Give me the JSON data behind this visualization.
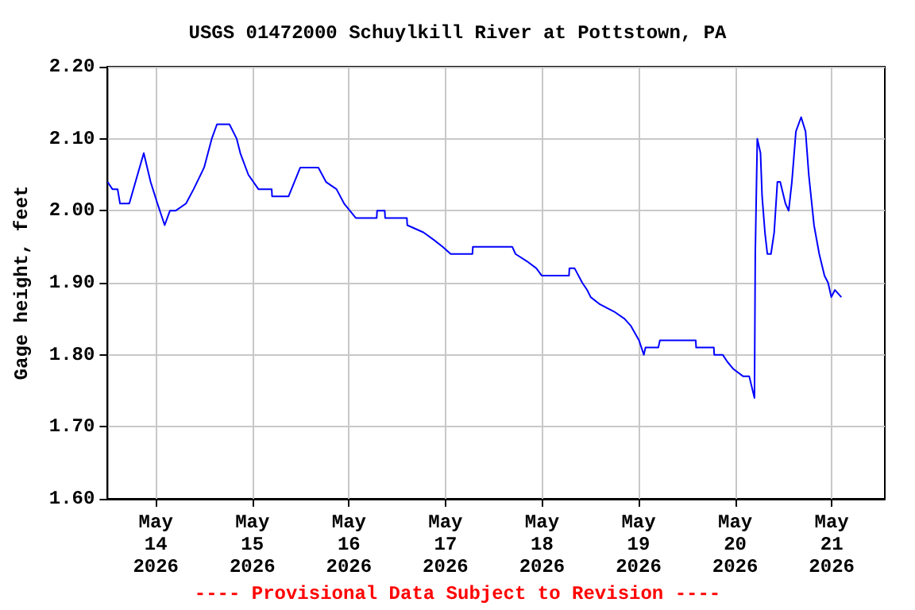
{
  "chart_data": {
    "type": "line",
    "title": "USGS 01472000 Schuylkill River at Pottstown, PA",
    "ylabel": "Gage height, feet",
    "annotations": [
      "---- Provisional Data Subject to Revision ----"
    ],
    "series": [
      {
        "color": "#0000ff",
        "x": [
          "2026-05-13T12:00",
          "2026-05-13T13:12",
          "2026-05-13T14:30",
          "2026-05-13T15:06",
          "2026-05-13T17:24",
          "2026-05-13T21:00",
          "2026-05-13T22:42",
          "2026-05-14T00:24",
          "2026-05-14T02:12",
          "2026-05-14T03:30",
          "2026-05-14T04:54",
          "2026-05-14T07:30",
          "2026-05-14T09:24",
          "2026-05-14T12:00",
          "2026-05-14T13:54",
          "2026-05-14T15:12",
          "2026-05-14T18:18",
          "2026-05-14T20:06",
          "2026-05-14T21:00",
          "2026-05-14T23:00",
          "2026-05-15T01:30",
          "2026-05-15T04:48",
          "2026-05-15T04:54",
          "2026-05-15T09:00",
          "2026-05-15T11:54",
          "2026-05-15T16:24",
          "2026-05-15T18:18",
          "2026-05-15T20:54",
          "2026-05-15T22:48",
          "2026-05-16T01:42",
          "2026-05-16T06:54",
          "2026-05-16T07:00",
          "2026-05-16T08:54",
          "2026-05-16T09:00",
          "2026-05-16T14:24",
          "2026-05-16T14:30",
          "2026-05-16T18:30",
          "2026-05-16T21:00",
          "2026-05-16T23:18",
          "2026-05-17T01:18",
          "2026-05-17T06:42",
          "2026-05-17T06:48",
          "2026-05-17T16:36",
          "2026-05-17T17:24",
          "2026-05-17T20:12",
          "2026-05-17T22:36",
          "2026-05-17T23:54",
          "2026-05-18T06:42",
          "2026-05-18T06:48",
          "2026-05-18T08:06",
          "2026-05-18T10:00",
          "2026-05-18T11:12",
          "2026-05-18T12:06",
          "2026-05-18T14:24",
          "2026-05-18T17:54",
          "2026-05-18T20:30",
          "2026-05-18T22:06",
          "2026-05-19T00:06",
          "2026-05-19T01:18",
          "2026-05-19T01:42",
          "2026-05-19T04:54",
          "2026-05-19T05:18",
          "2026-05-19T14:12",
          "2026-05-19T14:18",
          "2026-05-19T18:42",
          "2026-05-19T18:48",
          "2026-05-19T20:54",
          "2026-05-19T22:06",
          "2026-05-19T23:36",
          "2026-05-20T02:00",
          "2026-05-20T03:30",
          "2026-05-20T04:48",
          "2026-05-20T05:00",
          "2026-05-20T05:30",
          "2026-05-20T06:18",
          "2026-05-20T06:42",
          "2026-05-20T07:24",
          "2026-05-20T08:00",
          "2026-05-20T08:54",
          "2026-05-20T09:42",
          "2026-05-20T10:30",
          "2026-05-20T11:12",
          "2026-05-20T12:30",
          "2026-05-20T13:18",
          "2026-05-20T14:06",
          "2026-05-20T15:06",
          "2026-05-20T16:24",
          "2026-05-20T17:30",
          "2026-05-20T18:18",
          "2026-05-20T19:36",
          "2026-05-20T20:54",
          "2026-05-20T22:12",
          "2026-05-20T23:06",
          "2026-05-20T23:54",
          "2026-05-21T00:48",
          "2026-05-21T02:24"
        ],
        "values": [
          2.04,
          2.03,
          2.03,
          2.01,
          2.01,
          2.08,
          2.04,
          2.01,
          1.98,
          2.0,
          2.0,
          2.01,
          2.03,
          2.06,
          2.1,
          2.12,
          2.12,
          2.1,
          2.08,
          2.05,
          2.03,
          2.03,
          2.02,
          2.02,
          2.06,
          2.06,
          2.04,
          2.03,
          2.01,
          1.99,
          1.99,
          2.0,
          2.0,
          1.99,
          1.99,
          1.98,
          1.97,
          1.96,
          1.95,
          1.94,
          1.94,
          1.95,
          1.95,
          1.94,
          1.93,
          1.92,
          1.91,
          1.91,
          1.92,
          1.92,
          1.9,
          1.89,
          1.88,
          1.87,
          1.86,
          1.85,
          1.84,
          1.82,
          1.8,
          1.81,
          1.81,
          1.82,
          1.82,
          1.81,
          1.81,
          1.8,
          1.8,
          1.79,
          1.78,
          1.77,
          1.77,
          1.74,
          1.94,
          2.1,
          2.08,
          2.02,
          1.97,
          1.94,
          1.94,
          1.97,
          2.04,
          2.04,
          2.01,
          2.0,
          2.04,
          2.11,
          2.13,
          2.11,
          2.05,
          1.98,
          1.94,
          1.91,
          1.9,
          1.88,
          1.89,
          1.88
        ]
      }
    ],
    "xlim": [
      "2026-05-13T12:00",
      "2026-05-21T13:12"
    ],
    "xticks": [
      {
        "value": "2026-05-14",
        "label": "May\n14\n2026"
      },
      {
        "value": "2026-05-15",
        "label": "May\n15\n2026"
      },
      {
        "value": "2026-05-16",
        "label": "May\n16\n2026"
      },
      {
        "value": "2026-05-17",
        "label": "May\n17\n2026"
      },
      {
        "value": "2026-05-18",
        "label": "May\n18\n2026"
      },
      {
        "value": "2026-05-19",
        "label": "May\n19\n2026"
      },
      {
        "value": "2026-05-20",
        "label": "May\n20\n2026"
      },
      {
        "value": "2026-05-21",
        "label": "May\n21\n2026"
      }
    ],
    "ylim": [
      1.6,
      2.2
    ],
    "yticks": [
      {
        "value": 1.6,
        "label": "1.60"
      },
      {
        "value": 1.7,
        "label": "1.70"
      },
      {
        "value": 1.8,
        "label": "1.80"
      },
      {
        "value": 1.9,
        "label": "1.90"
      },
      {
        "value": 2.0,
        "label": "2.00"
      },
      {
        "value": 2.1,
        "label": "2.10"
      },
      {
        "value": 2.2,
        "label": "2.20"
      }
    ],
    "grid": true,
    "marker": "none",
    "line_style": "solid"
  }
}
